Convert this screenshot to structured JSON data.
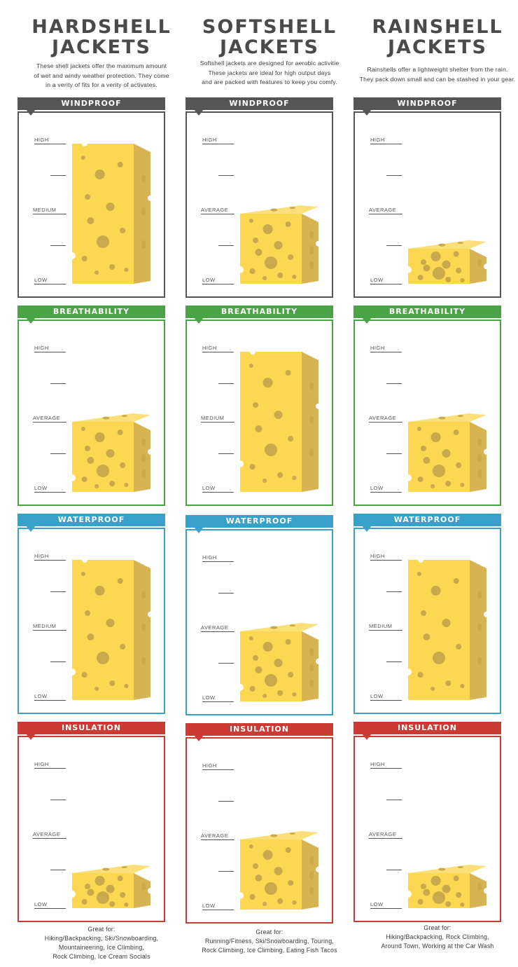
{
  "colors": {
    "windproof": "#555555",
    "breathability": "#4aa447",
    "waterproof": "#37a0cb",
    "insulation": "#cc3b33",
    "cheese_front": "#fcd752",
    "cheese_top": "#fbe07a",
    "cheese_side": "#d8b353",
    "hole": "#c9a94b"
  },
  "columns": [
    {
      "title_line1": "HARDSHELL",
      "title_line2": "JACKETS",
      "desc": [
        "These shell jackets offer the maximum amount",
        "of wet and windy weather protection. They come",
        "in a verity of fits for a verity of activates."
      ],
      "great_for_label": "Great for:",
      "great_for": [
        "Hiking/Backpacking, Ski/Snowboarding,",
        "Mountaineering, Ice Climbing,",
        "Rock Climbing, Ice Cream Socials"
      ],
      "panels": [
        {
          "category": "WINDPROOF",
          "color": "windproof",
          "labels": [
            "HIGH",
            "MEDIUM",
            "LOW"
          ],
          "level": 1.0
        },
        {
          "category": "BREATHABILITY",
          "color": "breathability",
          "labels": [
            "HIGH",
            "AVERAGE",
            "LOW"
          ],
          "level": 0.5
        },
        {
          "category": "WATERPROOF",
          "color": "waterproof",
          "labels": [
            "HIGH",
            "MEDIUM",
            "LOW"
          ],
          "level": 1.0
        },
        {
          "category": "INSULATION",
          "color": "insulation",
          "labels": [
            "HIGH",
            "AVERAGE",
            "LOW"
          ],
          "level": 0.25
        }
      ]
    },
    {
      "title_line1": "SOFTSHELL",
      "title_line2": "JACKETS",
      "desc": [
        "Softshell jackets are designed for aerobic activitie",
        "These jackets are ideal for high output days",
        "and are packed with features to keep you comfy."
      ],
      "great_for_label": "Great for:",
      "great_for": [
        "Running/Fitness, Ski/Snowboarding, Touring,",
        "Rock Climbing, Ice Climbing, Eating Fish Tacos"
      ],
      "panels": [
        {
          "category": "WINDPROOF",
          "color": "windproof",
          "labels": [
            "HIGH",
            "AVERAGE",
            "LOW"
          ],
          "level": 0.5
        },
        {
          "category": "BREATHABILITY",
          "color": "breathability",
          "labels": [
            "HIGH",
            "MEDIUM",
            "LOW"
          ],
          "level": 1.0
        },
        {
          "category": "WATERPROOF",
          "color": "waterproof",
          "labels": [
            "HIGH",
            "AVERAGE",
            "LOW"
          ],
          "level": 0.5
        },
        {
          "category": "INSULATION",
          "color": "insulation",
          "labels": [
            "HIGH",
            "AVERAGE",
            "LOW"
          ],
          "level": 0.5
        }
      ]
    },
    {
      "title_line1": "RAINSHELL",
      "title_line2": "JACKETS",
      "desc": [
        "Rainshells offer a lightweight shelter from the rain.",
        "They pack down small and can be stashed in your gear."
      ],
      "great_for_label": "Great for:",
      "great_for": [
        "Hiking/Backpacking, Rock Climbing,",
        "Around Town, Working at the Car Wash"
      ],
      "panels": [
        {
          "category": "WINDPROOF",
          "color": "windproof",
          "labels": [
            "HIGH",
            "AVERAGE",
            "LOW"
          ],
          "level": 0.25
        },
        {
          "category": "BREATHABILITY",
          "color": "breathability",
          "labels": [
            "HIGH",
            "AVERAGE",
            "LOW"
          ],
          "level": 0.5
        },
        {
          "category": "WATERPROOF",
          "color": "waterproof",
          "labels": [
            "HIGH",
            "MEDIUM",
            "LOW"
          ],
          "level": 1.0
        },
        {
          "category": "INSULATION",
          "color": "insulation",
          "labels": [
            "HIGH",
            "AVERAGE",
            "LOW"
          ],
          "level": 0.25
        }
      ]
    }
  ]
}
